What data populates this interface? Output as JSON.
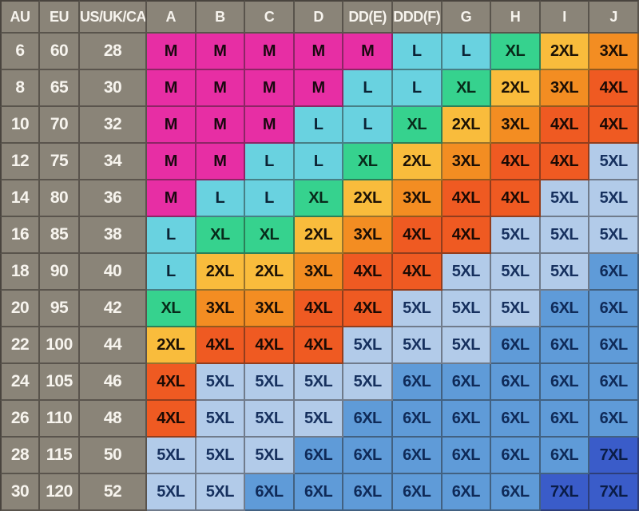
{
  "chart_data": {
    "type": "table",
    "headers": [
      "AU",
      "EU",
      "US/UK/CA",
      "A",
      "B",
      "C",
      "D",
      "DD(E)",
      "DDD(F)",
      "G",
      "H",
      "I",
      "J"
    ],
    "rows": [
      {
        "au": "6",
        "eu": "60",
        "us_uk_ca": "28",
        "sizes": [
          "M",
          "M",
          "M",
          "M",
          "M",
          "L",
          "L",
          "XL",
          "2XL",
          "3XL"
        ]
      },
      {
        "au": "8",
        "eu": "65",
        "us_uk_ca": "30",
        "sizes": [
          "M",
          "M",
          "M",
          "M",
          "L",
          "L",
          "XL",
          "2XL",
          "3XL",
          "4XL"
        ]
      },
      {
        "au": "10",
        "eu": "70",
        "us_uk_ca": "32",
        "sizes": [
          "M",
          "M",
          "M",
          "L",
          "L",
          "XL",
          "2XL",
          "3XL",
          "4XL",
          "4XL"
        ]
      },
      {
        "au": "12",
        "eu": "75",
        "us_uk_ca": "34",
        "sizes": [
          "M",
          "M",
          "L",
          "L",
          "XL",
          "2XL",
          "3XL",
          "4XL",
          "4XL",
          "5XL"
        ]
      },
      {
        "au": "14",
        "eu": "80",
        "us_uk_ca": "36",
        "sizes": [
          "M",
          "L",
          "L",
          "XL",
          "2XL",
          "3XL",
          "4XL",
          "4XL",
          "5XL",
          "5XL"
        ]
      },
      {
        "au": "16",
        "eu": "85",
        "us_uk_ca": "38",
        "sizes": [
          "L",
          "XL",
          "XL",
          "2XL",
          "3XL",
          "4XL",
          "4XL",
          "5XL",
          "5XL",
          "5XL"
        ]
      },
      {
        "au": "18",
        "eu": "90",
        "us_uk_ca": "40",
        "sizes": [
          "L",
          "2XL",
          "2XL",
          "3XL",
          "4XL",
          "4XL",
          "5XL",
          "5XL",
          "5XL",
          "6XL"
        ]
      },
      {
        "au": "20",
        "eu": "95",
        "us_uk_ca": "42",
        "sizes": [
          "XL",
          "3XL",
          "3XL",
          "4XL",
          "4XL",
          "5XL",
          "5XL",
          "5XL",
          "6XL",
          "6XL"
        ]
      },
      {
        "au": "22",
        "eu": "100",
        "us_uk_ca": "44",
        "sizes": [
          "2XL",
          "4XL",
          "4XL",
          "4XL",
          "5XL",
          "5XL",
          "5XL",
          "6XL",
          "6XL",
          "6XL"
        ]
      },
      {
        "au": "24",
        "eu": "105",
        "us_uk_ca": "46",
        "sizes": [
          "4XL",
          "5XL",
          "5XL",
          "5XL",
          "5XL",
          "6XL",
          "6XL",
          "6XL",
          "6XL",
          "6XL"
        ]
      },
      {
        "au": "26",
        "eu": "110",
        "us_uk_ca": "48",
        "sizes": [
          "4XL",
          "5XL",
          "5XL",
          "5XL",
          "6XL",
          "6XL",
          "6XL",
          "6XL",
          "6XL",
          "6XL"
        ]
      },
      {
        "au": "28",
        "eu": "115",
        "us_uk_ca": "50",
        "sizes": [
          "5XL",
          "5XL",
          "5XL",
          "6XL",
          "6XL",
          "6XL",
          "6XL",
          "6XL",
          "6XL",
          "7XL"
        ]
      },
      {
        "au": "30",
        "eu": "120",
        "us_uk_ca": "52",
        "sizes": [
          "5XL",
          "5XL",
          "6XL",
          "6XL",
          "6XL",
          "6XL",
          "6XL",
          "6XL",
          "7XL",
          "7XL"
        ]
      }
    ]
  },
  "colors": {
    "header_bg": "#8a8478",
    "label_bg": "#8a8478",
    "header_text": "#f7f4ee",
    "label_text": "#f7f4ee",
    "size_fill": {
      "M": "#e72ea4",
      "L": "#69d2e0",
      "XL": "#36d28e",
      "2XL": "#f9bc3c",
      "3XL": "#f38d22",
      "4XL": "#ef5a22",
      "5XL": "#b2cbe9",
      "6XL": "#5f9bd8",
      "7XL": "#3a5cc9"
    },
    "size_text": {
      "M": "#19080f",
      "L": "#0b2335",
      "XL": "#082a1a",
      "2XL": "#1c1206",
      "3XL": "#1a0e05",
      "4XL": "#1b0a04",
      "5XL": "#16305e",
      "6XL": "#0f2a58",
      "7XL": "#0a1c46"
    }
  }
}
